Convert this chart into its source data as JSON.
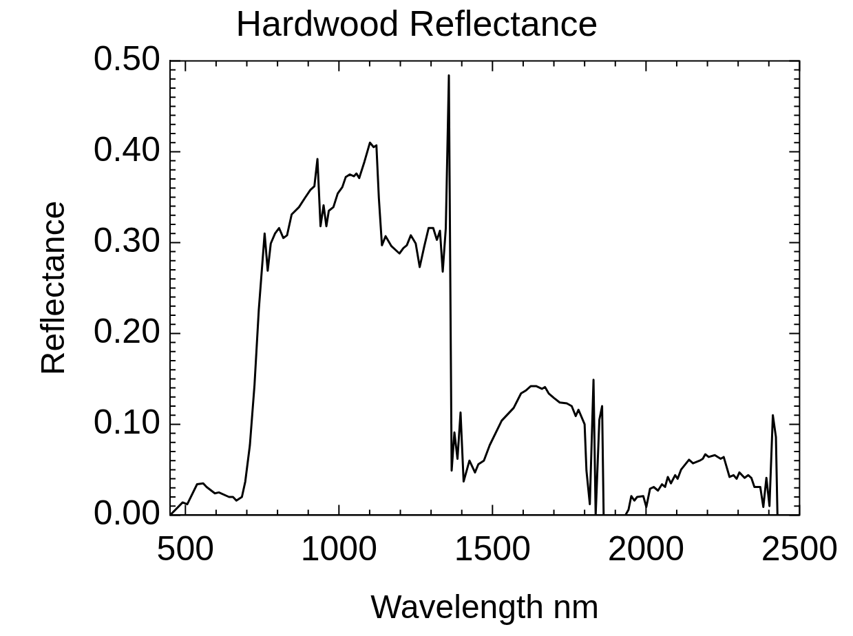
{
  "chart_data": {
    "type": "line",
    "title": "Hardwood Reflectance",
    "xlabel": "Wavelength nm",
    "ylabel": "Reflectance",
    "color": "#000000",
    "marker": "none",
    "line_style": "solid",
    "grid": false,
    "legend": false,
    "xlim": [
      450,
      2500
    ],
    "ylim": [
      0,
      0.5
    ],
    "xticks": [
      {
        "value": 500,
        "label": "500"
      },
      {
        "value": 600,
        "label": null
      },
      {
        "value": 700,
        "label": null
      },
      {
        "value": 800,
        "label": null
      },
      {
        "value": 900,
        "label": null
      },
      {
        "value": 1000,
        "label": "1000"
      },
      {
        "value": 1100,
        "label": null
      },
      {
        "value": 1200,
        "label": null
      },
      {
        "value": 1300,
        "label": null
      },
      {
        "value": 1400,
        "label": null
      },
      {
        "value": 1500,
        "label": "1500"
      },
      {
        "value": 1600,
        "label": null
      },
      {
        "value": 1700,
        "label": null
      },
      {
        "value": 1800,
        "label": null
      },
      {
        "value": 1900,
        "label": null
      },
      {
        "value": 2000,
        "label": "2000"
      },
      {
        "value": 2100,
        "label": null
      },
      {
        "value": 2200,
        "label": null
      },
      {
        "value": 2300,
        "label": null
      },
      {
        "value": 2400,
        "label": null
      },
      {
        "value": 2500,
        "label": "2500"
      }
    ],
    "yticks": [
      {
        "value": 0,
        "label": "0.00"
      },
      {
        "value": 0.01,
        "label": null
      },
      {
        "value": 0.02,
        "label": null
      },
      {
        "value": 0.03,
        "label": null
      },
      {
        "value": 0.04,
        "label": null
      },
      {
        "value": 0.05,
        "label": null
      },
      {
        "value": 0.06,
        "label": null
      },
      {
        "value": 0.07,
        "label": null
      },
      {
        "value": 0.08,
        "label": null
      },
      {
        "value": 0.09,
        "label": null
      },
      {
        "value": 0.1,
        "label": "0.10"
      },
      {
        "value": 0.11,
        "label": null
      },
      {
        "value": 0.12,
        "label": null
      },
      {
        "value": 0.13,
        "label": null
      },
      {
        "value": 0.14,
        "label": null
      },
      {
        "value": 0.15,
        "label": null
      },
      {
        "value": 0.16,
        "label": null
      },
      {
        "value": 0.17,
        "label": null
      },
      {
        "value": 0.18,
        "label": null
      },
      {
        "value": 0.19,
        "label": null
      },
      {
        "value": 0.2,
        "label": "0.20"
      },
      {
        "value": 0.21,
        "label": null
      },
      {
        "value": 0.22,
        "label": null
      },
      {
        "value": 0.23,
        "label": null
      },
      {
        "value": 0.24,
        "label": null
      },
      {
        "value": 0.25,
        "label": null
      },
      {
        "value": 0.26,
        "label": null
      },
      {
        "value": 0.27,
        "label": null
      },
      {
        "value": 0.28,
        "label": null
      },
      {
        "value": 0.29,
        "label": null
      },
      {
        "value": 0.3,
        "label": "0.30"
      },
      {
        "value": 0.31,
        "label": null
      },
      {
        "value": 0.32,
        "label": null
      },
      {
        "value": 0.33,
        "label": null
      },
      {
        "value": 0.34,
        "label": null
      },
      {
        "value": 0.35,
        "label": null
      },
      {
        "value": 0.36,
        "label": null
      },
      {
        "value": 0.37,
        "label": null
      },
      {
        "value": 0.38,
        "label": null
      },
      {
        "value": 0.39,
        "label": null
      },
      {
        "value": 0.4,
        "label": "0.40"
      },
      {
        "value": 0.41,
        "label": null
      },
      {
        "value": 0.42,
        "label": null
      },
      {
        "value": 0.43,
        "label": null
      },
      {
        "value": 0.44,
        "label": null
      },
      {
        "value": 0.45,
        "label": null
      },
      {
        "value": 0.46,
        "label": null
      },
      {
        "value": 0.47,
        "label": null
      },
      {
        "value": 0.48,
        "label": null
      },
      {
        "value": 0.49,
        "label": null
      },
      {
        "value": 0.5,
        "label": "0.50"
      }
    ],
    "x": [
      450,
      491,
      506,
      538,
      558,
      569,
      596,
      609,
      642,
      655,
      666,
      684,
      695,
      710,
      725,
      739,
      758,
      768,
      778,
      792,
      805,
      819,
      831,
      846,
      870,
      889,
      907,
      920,
      930,
      940,
      950,
      959,
      967,
      982,
      996,
      1011,
      1022,
      1035,
      1049,
      1057,
      1066,
      1083,
      1101,
      1113,
      1122,
      1130,
      1140,
      1152,
      1171,
      1197,
      1210,
      1221,
      1234,
      1250,
      1263,
      1278,
      1292,
      1307,
      1319,
      1329,
      1338,
      1348,
      1358,
      1367,
      1376,
      1386,
      1396,
      1406,
      1425,
      1443,
      1454,
      1472,
      1491,
      1530,
      1569,
      1593,
      1608,
      1625,
      1642,
      1661,
      1671,
      1683,
      1700,
      1719,
      1742,
      1758,
      1771,
      1780,
      1800,
      1806,
      1817,
      1829,
      1836,
      1848,
      1857,
      1862,
      1900,
      1933,
      1943,
      1952,
      1962,
      1971,
      1991,
      2001,
      2013,
      2025,
      2039,
      2052,
      2062,
      2071,
      2081,
      2095,
      2103,
      2114,
      2140,
      2153,
      2175,
      2185,
      2193,
      2204,
      2224,
      2243,
      2253,
      2272,
      2285,
      2295,
      2304,
      2321,
      2333,
      2343,
      2353,
      2372,
      2382,
      2392,
      2402,
      2413,
      2423,
      2428
    ],
    "values": [
      0,
      0.014,
      0.012,
      0.034,
      0.035,
      0.031,
      0.024,
      0.025,
      0.02,
      0.02,
      0.016,
      0.02,
      0.037,
      0.077,
      0.143,
      0.226,
      0.31,
      0.269,
      0.299,
      0.31,
      0.316,
      0.305,
      0.308,
      0.331,
      0.339,
      0.349,
      0.358,
      0.362,
      0.392,
      0.318,
      0.341,
      0.318,
      0.335,
      0.339,
      0.354,
      0.361,
      0.372,
      0.375,
      0.373,
      0.376,
      0.371,
      0.389,
      0.41,
      0.405,
      0.407,
      0.349,
      0.297,
      0.307,
      0.296,
      0.288,
      0.294,
      0.297,
      0.308,
      0.299,
      0.273,
      0.296,
      0.316,
      0.316,
      0.303,
      0.313,
      0.268,
      0.316,
      0.484,
      0.049,
      0.091,
      0.062,
      0.113,
      0.037,
      0.06,
      0.047,
      0.056,
      0.06,
      0.077,
      0.104,
      0.118,
      0.134,
      0.137,
      0.142,
      0.142,
      0.139,
      0.141,
      0.134,
      0.129,
      0.124,
      0.123,
      0.12,
      0.109,
      0.116,
      0.1,
      0.049,
      0.012,
      0.149,
      0,
      0.105,
      0.12,
      0,
      0,
      0,
      0.006,
      0.021,
      0.016,
      0.02,
      0.021,
      0.009,
      0.029,
      0.031,
      0.027,
      0.034,
      0.031,
      0.042,
      0.035,
      0.044,
      0.04,
      0.05,
      0.061,
      0.057,
      0.06,
      0.062,
      0.067,
      0.064,
      0.066,
      0.062,
      0.064,
      0.042,
      0.044,
      0.04,
      0.047,
      0.041,
      0.044,
      0.041,
      0.031,
      0.031,
      0.009,
      0.041,
      0.01,
      0.11,
      0.086,
      0
    ]
  }
}
